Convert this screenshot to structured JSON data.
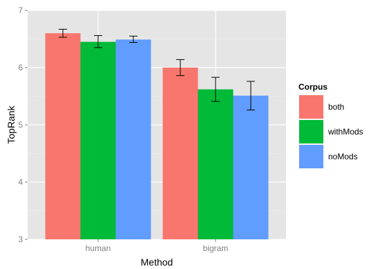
{
  "chart_data": {
    "type": "bar",
    "categories": [
      "human",
      "bigram"
    ],
    "series": [
      {
        "name": "both",
        "color": "#F8766D",
        "values": [
          6.6,
          6.0
        ],
        "error_low": [
          6.53,
          5.86
        ],
        "error_high": [
          6.67,
          6.14
        ]
      },
      {
        "name": "withMods",
        "color": "#00BA38",
        "values": [
          6.45,
          5.62
        ],
        "error_low": [
          6.35,
          5.41
        ],
        "error_high": [
          6.56,
          5.83
        ]
      },
      {
        "name": "noMods",
        "color": "#619CFF",
        "values": [
          6.49,
          5.51
        ],
        "error_low": [
          6.44,
          5.26
        ],
        "error_high": [
          6.55,
          5.76
        ]
      }
    ],
    "title": "",
    "xlabel": "Method",
    "ylabel": "TopRank",
    "ylim": [
      3,
      7
    ],
    "yticks": [
      3,
      4,
      5,
      6,
      7
    ],
    "grid": true,
    "panel_background": "#E5E5E5",
    "legend": {
      "title": "Corpus",
      "position": "right"
    }
  }
}
